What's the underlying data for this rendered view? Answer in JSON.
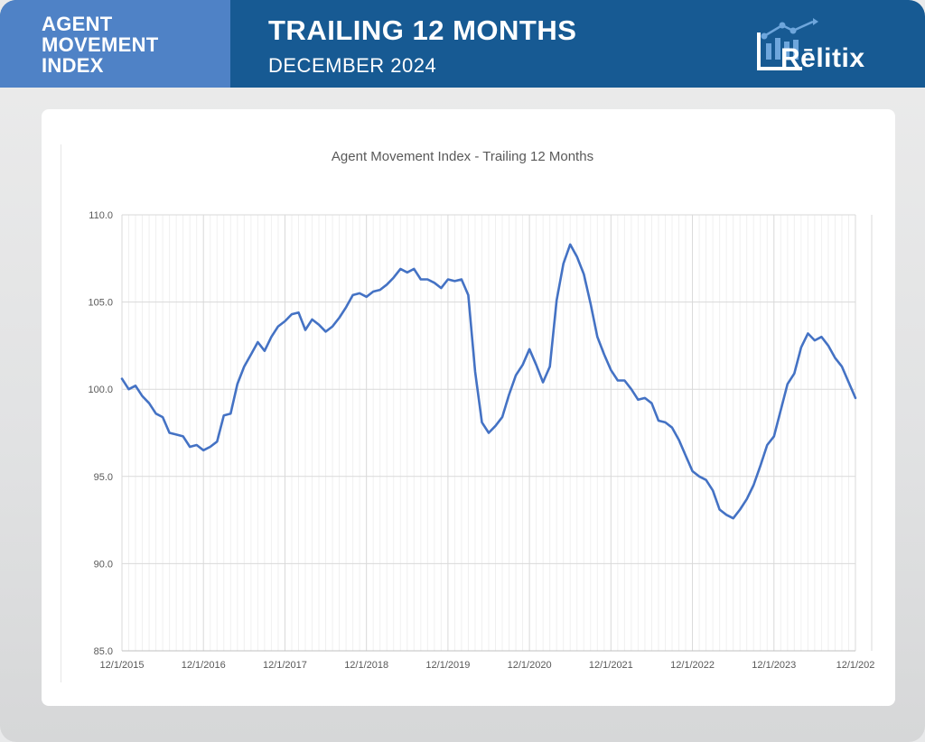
{
  "header": {
    "index_title_lines": [
      "AGENT",
      "MOVEMENT",
      "INDEX"
    ],
    "title": "TRAILING 12 MONTHS",
    "subtitle": "DECEMBER 2024",
    "logo_text": "Rēlitix"
  },
  "colors": {
    "header_dark": "#175a93",
    "header_light": "#4f82c6",
    "line": "#4472c4",
    "grid": "#d9d9d9"
  },
  "chart_data": {
    "type": "line",
    "title": "Agent Movement Index - Trailing 12 Months",
    "xlabel": "",
    "ylabel": "",
    "ylim": [
      85,
      110
    ],
    "yticks": [
      "85.0",
      "90.0",
      "95.0",
      "100.0",
      "105.0",
      "110.0"
    ],
    "xtick_labels": [
      "12/1/2015",
      "12/1/2016",
      "12/1/2017",
      "12/1/2018",
      "12/1/2019",
      "12/1/2020",
      "12/1/2021",
      "12/1/2022",
      "12/1/2023",
      "12/1/202"
    ],
    "grid": true,
    "start_month": "12/1/2015",
    "series": [
      {
        "values": [
          100.6,
          100.0,
          100.2,
          99.6,
          99.2,
          98.6,
          98.4,
          97.5,
          97.4,
          97.3,
          96.7,
          96.8,
          96.5,
          96.7,
          97.0,
          98.5,
          98.6,
          100.3,
          101.3,
          102.0,
          102.7,
          102.2,
          103.0,
          103.6,
          103.9,
          104.3,
          104.4,
          103.4,
          104.0,
          103.7,
          103.3,
          103.6,
          104.1,
          104.7,
          105.4,
          105.5,
          105.3,
          105.6,
          105.7,
          106.0,
          106.4,
          106.9,
          106.7,
          106.9,
          106.3,
          106.3,
          106.1,
          105.8,
          106.3,
          106.2,
          106.3,
          105.4,
          101.0,
          98.1,
          97.5,
          97.9,
          98.4,
          99.7,
          100.8,
          101.4,
          102.3,
          101.4,
          100.4,
          101.3,
          105.1,
          107.2,
          108.3,
          107.6,
          106.6,
          104.9,
          103.0,
          102.0,
          101.1,
          100.5,
          100.5,
          100.0,
          99.4,
          99.5,
          99.2,
          98.2,
          98.1,
          97.8,
          97.1,
          96.2,
          95.3,
          95.0,
          94.8,
          94.2,
          93.1,
          92.8,
          92.6,
          93.1,
          93.7,
          94.5,
          95.6,
          96.8,
          97.3,
          98.8,
          100.3,
          100.9,
          102.4,
          103.2,
          102.8,
          103.0,
          102.5,
          101.8,
          101.3,
          100.4,
          99.5
        ]
      }
    ]
  }
}
